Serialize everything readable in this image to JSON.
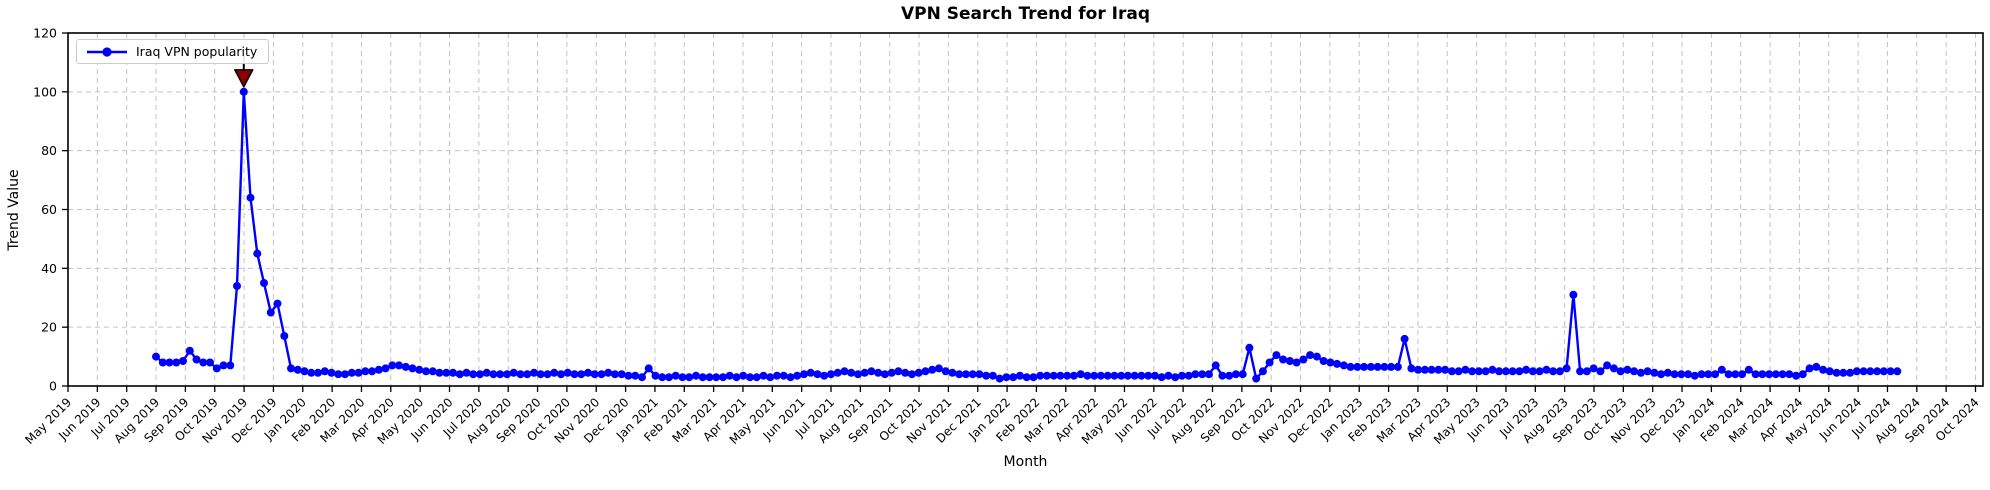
{
  "chart_data": {
    "type": "line",
    "title": "VPN Search Trend for Iraq",
    "xlabel": "Month",
    "ylabel": "Trend Value",
    "ylim": [
      0,
      120
    ],
    "yticks": [
      0,
      20,
      40,
      60,
      80,
      100,
      120
    ],
    "grid": true,
    "legend_position": "upper left",
    "x_tick_labels": [
      "May 2019",
      "Jun 2019",
      "Jul 2019",
      "Aug 2019",
      "Sep 2019",
      "Oct 2019",
      "Nov 2019",
      "Dec 2019",
      "Jan 2020",
      "Feb 2020",
      "Mar 2020",
      "Apr 2020",
      "May 2020",
      "Jun 2020",
      "Jul 2020",
      "Aug 2020",
      "Sep 2020",
      "Oct 2020",
      "Nov 2020",
      "Dec 2020",
      "Jan 2021",
      "Feb 2021",
      "Mar 2021",
      "Apr 2021",
      "May 2021",
      "Jun 2021",
      "Jul 2021",
      "Aug 2021",
      "Sep 2021",
      "Oct 2021",
      "Nov 2021",
      "Dec 2021",
      "Jan 2022",
      "Feb 2022",
      "Mar 2022",
      "Apr 2022",
      "May 2022",
      "Jun 2022",
      "Jul 2022",
      "Aug 2022",
      "Sep 2022",
      "Oct 2022",
      "Nov 2022",
      "Dec 2022",
      "Jan 2023",
      "Feb 2023",
      "Mar 2023",
      "Apr 2023",
      "May 2023",
      "Jun 2023",
      "Jul 2023",
      "Aug 2023",
      "Sep 2023",
      "Oct 2023",
      "Nov 2023",
      "Dec 2023",
      "Jan 2024",
      "Feb 2024",
      "Mar 2024",
      "Apr 2024",
      "May 2024",
      "Jun 2024",
      "Jul 2024",
      "Aug 2024",
      "Sep 2024",
      "Oct 2024"
    ],
    "series": [
      {
        "name": "Iraq VPN popularity",
        "color": "#0000ff",
        "marker": "circle",
        "interval": "weekly",
        "start_month_label": "Aug 2019",
        "start_month_index": 3,
        "values": [
          10,
          8,
          8,
          8,
          8.5,
          12,
          9,
          8,
          8,
          6,
          7,
          7,
          34,
          100,
          64,
          45,
          35,
          25,
          28,
          17,
          6,
          5.5,
          5,
          4.5,
          4.5,
          5,
          4.5,
          4,
          4,
          4.5,
          4.5,
          5,
          5,
          5.5,
          6,
          7,
          7,
          6.5,
          6,
          5.5,
          5,
          5,
          4.5,
          4.5,
          4.5,
          4,
          4.5,
          4,
          4,
          4.5,
          4,
          4,
          4,
          4.5,
          4,
          4,
          4.5,
          4,
          4,
          4.5,
          4,
          4.5,
          4,
          4,
          4.5,
          4,
          4,
          4.5,
          4,
          4,
          3.5,
          3.5,
          3,
          6,
          3.5,
          3,
          3,
          3.5,
          3,
          3,
          3.5,
          3,
          3,
          3,
          3,
          3.5,
          3,
          3.5,
          3,
          3,
          3.5,
          3,
          3.5,
          3.5,
          3,
          3.5,
          4,
          4.5,
          4,
          3.5,
          4,
          4.5,
          5,
          4.5,
          4,
          4.5,
          5,
          4.5,
          4,
          4.5,
          5,
          4.5,
          4,
          4.5,
          5,
          5.5,
          6,
          5,
          4.5,
          4,
          4,
          4,
          4,
          3.5,
          3.5,
          2.5,
          3,
          3,
          3.5,
          3,
          3,
          3.5,
          3.5,
          3.5,
          3.5,
          3.5,
          3.5,
          4,
          3.5,
          3.5,
          3.5,
          3.5,
          3.5,
          3.5,
          3.5,
          3.5,
          3.5,
          3.5,
          3.5,
          3,
          3.5,
          3,
          3.5,
          3.5,
          4,
          4,
          4,
          7,
          3.5,
          3.5,
          4,
          4,
          13,
          2.5,
          5,
          8,
          10.5,
          9,
          8.5,
          8,
          9,
          10.5,
          10,
          8.5,
          8,
          7.5,
          7,
          6.5,
          6.5,
          6.5,
          6.5,
          6.5,
          6.5,
          6.5,
          6.5,
          16,
          6,
          5.5,
          5.5,
          5.5,
          5.5,
          5.5,
          5,
          5,
          5.5,
          5,
          5,
          5,
          5.5,
          5,
          5,
          5,
          5,
          5.5,
          5,
          5,
          5.5,
          5,
          5,
          6,
          31,
          5,
          5,
          6,
          5,
          7,
          6,
          5,
          5.5,
          5,
          4.5,
          5,
          4.5,
          4,
          4.5,
          4,
          4,
          4,
          3.5,
          4,
          4,
          4,
          5.5,
          4,
          4,
          4,
          5.5,
          4,
          4,
          4,
          4,
          4,
          4,
          3.5,
          4,
          6,
          6.5,
          5.5,
          5,
          4.5,
          4.5,
          4.5,
          5,
          5,
          5,
          5,
          5,
          5,
          5
        ]
      }
    ],
    "annotation": {
      "type": "peak-marker",
      "shape": "down-triangle",
      "color": "#8b0000",
      "edge_color": "#000000",
      "x_label": "Nov 2019",
      "y_value": 100
    }
  }
}
